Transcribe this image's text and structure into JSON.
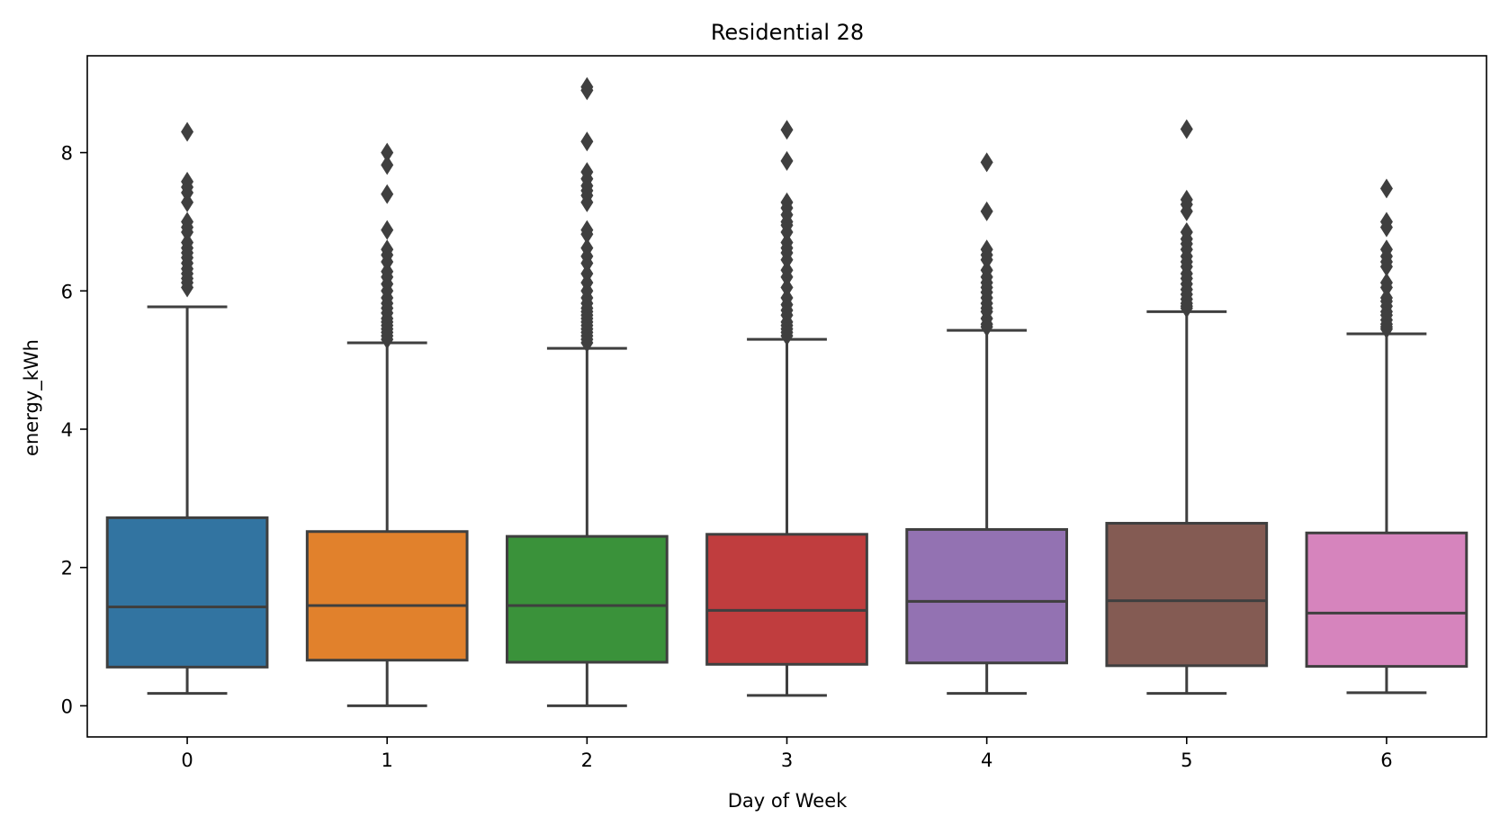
{
  "chart_data": {
    "type": "box",
    "title": "Residential 28",
    "xlabel": "Day of Week",
    "ylabel": "energy_kWh",
    "ylim": [
      -0.45,
      9.4
    ],
    "yticks": [
      0,
      2,
      4,
      6,
      8
    ],
    "grid": false,
    "categories": [
      "0",
      "1",
      "2",
      "3",
      "4",
      "5",
      "6"
    ],
    "colors": [
      "#3274a1",
      "#e1812c",
      "#3a923a",
      "#c03d3e",
      "#9372b2",
      "#845b53",
      "#d684bd"
    ],
    "edge_color": "#3f3f3f",
    "boxes": [
      {
        "category": "0",
        "whisker_low": 0.18,
        "q1": 0.56,
        "median": 1.43,
        "q3": 2.72,
        "whisker_high": 5.77,
        "outliers": [
          8.3,
          7.58,
          7.5,
          7.42,
          7.28,
          7.0,
          6.92,
          6.85,
          6.7,
          6.62,
          6.55,
          6.48,
          6.4,
          6.32,
          6.25,
          6.18,
          6.12,
          6.05
        ]
      },
      {
        "category": "1",
        "whisker_low": 0.0,
        "q1": 0.66,
        "median": 1.45,
        "q3": 2.52,
        "whisker_high": 5.25,
        "outliers": [
          8.0,
          7.82,
          7.4,
          6.88,
          6.6,
          6.52,
          6.42,
          6.28,
          6.2,
          6.1,
          6.0,
          5.9,
          5.82,
          5.75,
          5.68,
          5.6,
          5.55,
          5.5,
          5.45,
          5.4,
          5.35,
          5.3
        ]
      },
      {
        "category": "2",
        "whisker_low": 0.0,
        "q1": 0.63,
        "median": 1.45,
        "q3": 2.45,
        "whisker_high": 5.17,
        "outliers": [
          8.95,
          8.9,
          8.16,
          7.72,
          7.62,
          7.52,
          7.45,
          7.38,
          7.28,
          6.88,
          6.82,
          6.62,
          6.5,
          6.4,
          6.25,
          6.12,
          6.0,
          5.9,
          5.82,
          5.75,
          5.7,
          5.65,
          5.6,
          5.55,
          5.5,
          5.45,
          5.4,
          5.35,
          5.3,
          5.25
        ]
      },
      {
        "category": "3",
        "whisker_low": 0.15,
        "q1": 0.6,
        "median": 1.38,
        "q3": 2.48,
        "whisker_high": 5.3,
        "outliers": [
          8.33,
          7.88,
          7.28,
          7.2,
          7.1,
          7.0,
          6.95,
          6.85,
          6.7,
          6.62,
          6.55,
          6.45,
          6.3,
          6.2,
          6.05,
          5.9,
          5.8,
          5.72,
          5.65,
          5.55,
          5.5,
          5.45,
          5.4,
          5.35
        ]
      },
      {
        "category": "4",
        "whisker_low": 0.18,
        "q1": 0.62,
        "median": 1.51,
        "q3": 2.55,
        "whisker_high": 5.43,
        "outliers": [
          7.86,
          7.15,
          6.6,
          6.52,
          6.45,
          6.3,
          6.2,
          6.12,
          6.05,
          5.98,
          5.9,
          5.82,
          5.75,
          5.7,
          5.6,
          5.52,
          5.48
        ]
      },
      {
        "category": "5",
        "whisker_low": 0.18,
        "q1": 0.58,
        "median": 1.52,
        "q3": 2.64,
        "whisker_high": 5.7,
        "outliers": [
          8.34,
          7.32,
          7.25,
          7.15,
          6.85,
          6.75,
          6.68,
          6.6,
          6.5,
          6.42,
          6.35,
          6.25,
          6.18,
          6.1,
          6.02,
          5.95,
          5.88,
          5.82,
          5.78,
          5.75
        ]
      },
      {
        "category": "6",
        "whisker_low": 0.19,
        "q1": 0.57,
        "median": 1.34,
        "q3": 2.5,
        "whisker_high": 5.38,
        "outliers": [
          7.48,
          7.0,
          6.92,
          6.6,
          6.5,
          6.42,
          6.35,
          6.12,
          6.05,
          5.9,
          5.85,
          5.78,
          5.7,
          5.65,
          5.58,
          5.52,
          5.48,
          5.45
        ]
      }
    ]
  }
}
